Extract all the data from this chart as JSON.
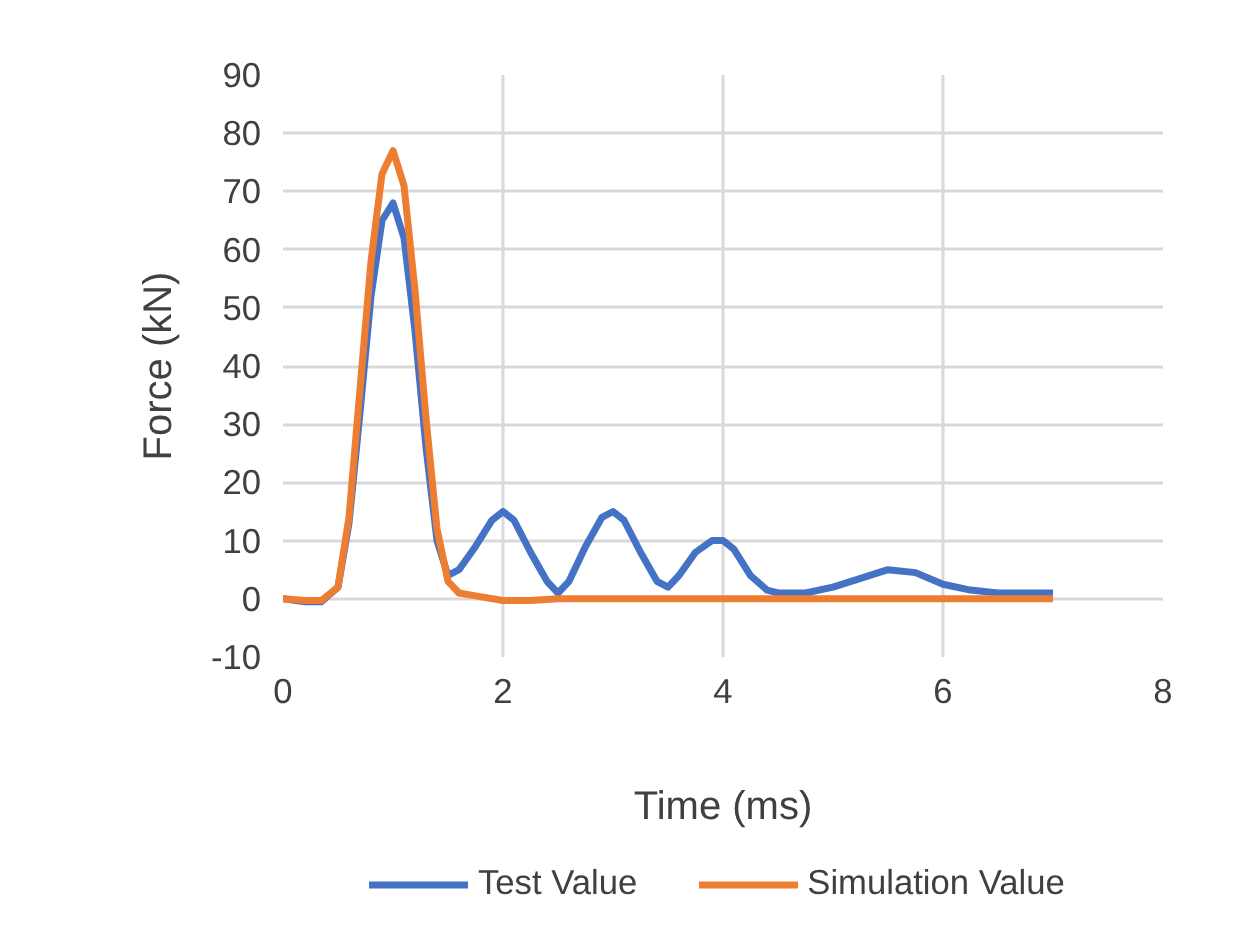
{
  "chart_data": {
    "type": "line",
    "xlabel": "Time (ms)",
    "ylabel": "Force (kN)",
    "xlim": [
      0,
      8
    ],
    "xticks": [
      0,
      2,
      4,
      6,
      8
    ],
    "ylim": [
      -10,
      90
    ],
    "yticks": [
      -10,
      0,
      10,
      20,
      30,
      40,
      50,
      60,
      70,
      80,
      90
    ],
    "grid": true,
    "legend": "bottom",
    "marker": "none",
    "line_style": "solid",
    "series": [
      {
        "name": "Test Value",
        "color": "#4472c4",
        "x": [
          0,
          0.2,
          0.35,
          0.5,
          0.6,
          0.7,
          0.8,
          0.9,
          1,
          1.1,
          1.2,
          1.3,
          1.4,
          1.5,
          1.6,
          1.75,
          1.9,
          2,
          2.1,
          2.25,
          2.4,
          2.5,
          2.6,
          2.75,
          2.9,
          3,
          3.1,
          3.25,
          3.4,
          3.5,
          3.6,
          3.75,
          3.9,
          4,
          4.1,
          4.25,
          4.4,
          4.5,
          4.75,
          5,
          5.25,
          5.5,
          5.75,
          6,
          6.25,
          6.5,
          7
        ],
        "values": [
          0,
          -0.5,
          -0.5,
          2,
          13,
          32,
          52,
          65,
          68,
          62,
          46,
          26,
          10,
          4,
          5,
          9,
          13.5,
          15,
          13.5,
          8,
          3,
          1,
          3,
          9,
          14,
          15,
          13.5,
          8,
          3,
          2,
          4,
          8,
          10,
          10,
          8.5,
          4,
          1.5,
          1,
          1,
          2,
          3.5,
          5,
          4.5,
          2.5,
          1.5,
          1,
          1
        ]
      },
      {
        "name": "Simulation Value",
        "color": "#ed7d31",
        "x": [
          0,
          0.2,
          0.35,
          0.5,
          0.6,
          0.7,
          0.8,
          0.9,
          1,
          1.1,
          1.2,
          1.3,
          1.4,
          1.5,
          1.6,
          1.75,
          2,
          2.25,
          2.5,
          3,
          4,
          5,
          6,
          7
        ],
        "values": [
          0,
          -0.3,
          -0.3,
          2,
          14,
          36,
          58,
          73,
          77,
          71,
          53,
          31,
          12,
          3,
          1,
          0.5,
          -0.3,
          -0.3,
          0,
          0,
          0,
          0,
          0,
          0
        ]
      }
    ]
  }
}
